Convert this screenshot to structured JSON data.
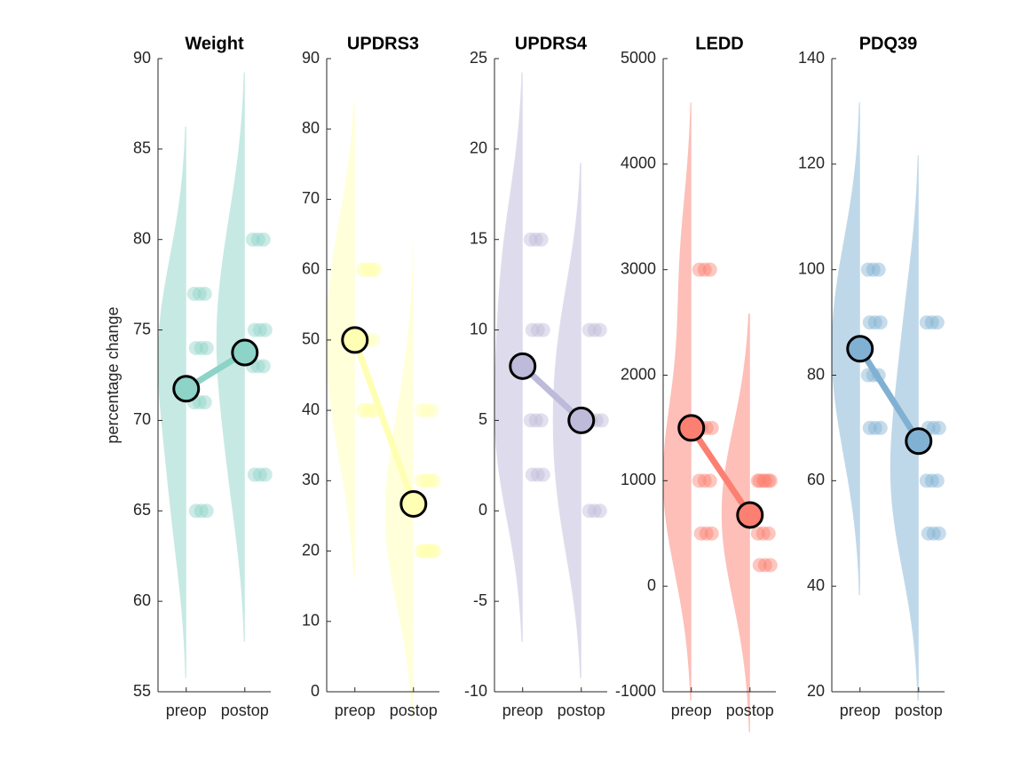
{
  "chart_data": [
    {
      "type": "raincloud",
      "title": "Weight",
      "ylabel": "percentage change",
      "color": "#8dd3c7",
      "categories": [
        "preop",
        "postop"
      ],
      "groups": [
        [
          77,
          74,
          71,
          65
        ],
        [
          80,
          75,
          73,
          67
        ]
      ],
      "means": [
        71.75,
        73.75
      ],
      "ylim": [
        55,
        90
      ],
      "yticks": [
        55,
        60,
        65,
        70,
        75,
        80,
        85,
        90
      ]
    },
    {
      "type": "raincloud",
      "title": "UPDRS3",
      "color": "#ffffb3",
      "categories": [
        "preop",
        "postop"
      ],
      "groups": [
        [
          60,
          60,
          50,
          40,
          40
        ],
        [
          40,
          30,
          30,
          20,
          20,
          20
        ]
      ],
      "means": [
        50,
        26.7
      ],
      "ylim": [
        0,
        90
      ],
      "yticks": [
        0,
        10,
        20,
        30,
        40,
        50,
        60,
        70,
        80,
        90
      ]
    },
    {
      "type": "raincloud",
      "title": "UPDRS4",
      "color": "#bebada",
      "categories": [
        "preop",
        "postop"
      ],
      "groups": [
        [
          15,
          10,
          5,
          2
        ],
        [
          10,
          5,
          0
        ]
      ],
      "means": [
        8,
        5
      ],
      "ylim": [
        -10,
        25
      ],
      "yticks": [
        -10,
        -5,
        0,
        5,
        10,
        15,
        20,
        25
      ]
    },
    {
      "type": "raincloud",
      "title": "LEDD",
      "color": "#fb8072",
      "categories": [
        "preop",
        "postop"
      ],
      "groups": [
        [
          3000,
          1500,
          1000,
          500
        ],
        [
          1000,
          1000,
          500,
          200
        ]
      ],
      "means": [
        1500,
        675
      ],
      "ylim": [
        -1000,
        5000
      ],
      "yticks": [
        -1000,
        0,
        1000,
        2000,
        3000,
        4000,
        5000
      ]
    },
    {
      "type": "raincloud",
      "title": "PDQ39",
      "color": "#80b1d3",
      "categories": [
        "preop",
        "postop"
      ],
      "groups": [
        [
          100,
          90,
          80,
          70
        ],
        [
          90,
          70,
          60,
          50
        ]
      ],
      "means": [
        85,
        67.5
      ],
      "ylim": [
        20,
        140
      ],
      "yticks": [
        20,
        40,
        60,
        80,
        100,
        120,
        140
      ]
    }
  ]
}
